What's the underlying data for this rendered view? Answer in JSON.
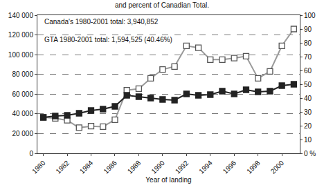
{
  "chart_data": {
    "type": "line",
    "title": "and percent of Canadian Total.",
    "x_label": "Year of landing",
    "annotations": [
      "Canada's 1980-2001 total: 3,940,852",
      "GTA 1980-2001 total: 1,594,525 (40.46%)"
    ],
    "x": [
      1980,
      1981,
      1982,
      1983,
      1984,
      1985,
      1986,
      1987,
      1988,
      1989,
      1990,
      1991,
      1992,
      1993,
      1994,
      1995,
      1996,
      1997,
      1998,
      1999,
      2000,
      2001
    ],
    "series": [
      {
        "color": "#9a9a9a",
        "marker": "square-open",
        "line_style": "solid",
        "values": [
          36500,
          35500,
          33500,
          26000,
          27500,
          27000,
          34000,
          64000,
          65500,
          76000,
          85000,
          88000,
          109000,
          107000,
          95000,
          95000,
          96500,
          98500,
          76000,
          83000,
          109000,
          126000
        ]
      },
      {
        "color": "#222222",
        "marker": "square",
        "line_style": "solid",
        "axis": "y2",
        "values": [
          26,
          27,
          27.5,
          29,
          31,
          32,
          34,
          42,
          41,
          40,
          39,
          38.5,
          43,
          42,
          42.5,
          45,
          43,
          46,
          44.5,
          45,
          49,
          50
        ]
      }
    ],
    "xlim": [
      1979.5,
      2001.5
    ],
    "xticks": [
      1980,
      1982,
      1984,
      1986,
      1988,
      1990,
      1992,
      1994,
      1996,
      1998,
      2000
    ],
    "ylim": [
      0,
      140000
    ],
    "yticks": [
      0,
      {
        "value": 20000,
        "label": "20 000"
      },
      {
        "value": 40000,
        "label": "40 000"
      },
      {
        "value": 60000,
        "label": "60 000"
      },
      {
        "value": 80000,
        "label": "80 000"
      },
      {
        "value": 100000,
        "label": "100 000"
      },
      {
        "value": 120000,
        "label": "120 000"
      },
      {
        "value": 140000,
        "label": "140 000"
      }
    ],
    "y2lim": [
      0,
      100
    ],
    "y2ticks": [
      {
        "value": 0,
        "label": "0 %"
      },
      10,
      20,
      30,
      40,
      50,
      60,
      70,
      80,
      90,
      100
    ],
    "grid": true
  }
}
